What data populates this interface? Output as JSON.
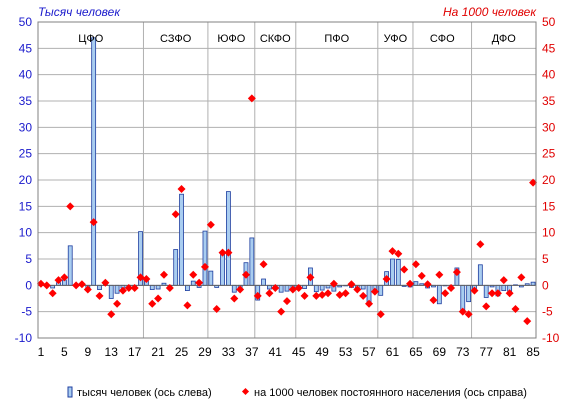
{
  "chart_data": {
    "type": "bar+scatter",
    "left_axis_unit": "Тысяч человек",
    "right_axis_unit": "На 1000 человек",
    "left_axis": {
      "range": [
        -10,
        50
      ],
      "ticks": [
        "50",
        "45",
        "40",
        "35",
        "30",
        "25",
        "20",
        "15",
        "10",
        "5",
        "0",
        "-5",
        "-10"
      ]
    },
    "right_axis": {
      "range": [
        -10,
        50
      ],
      "ticks": [
        "50",
        "45",
        "40",
        "35",
        "30",
        "25",
        "20",
        "15",
        "10",
        "5",
        "0",
        "-5",
        "-10"
      ]
    },
    "x_ticks": [
      "1",
      "5",
      "9",
      "13",
      "17",
      "21",
      "25",
      "29",
      "33",
      "37",
      "41",
      "45",
      "49",
      "53",
      "57",
      "61",
      "65",
      "69",
      "73",
      "77",
      "81",
      "85"
    ],
    "districts": [
      {
        "label": "ЦФО"
      },
      {
        "label": "СЗФО"
      },
      {
        "label": "ЮФО"
      },
      {
        "label": "СКФО"
      },
      {
        "label": "ПФО"
      },
      {
        "label": "УФО"
      },
      {
        "label": "СФО"
      },
      {
        "label": "ДФО"
      }
    ],
    "legend": {
      "bars": "тысяч человек (ось слева)",
      "dots": "на 1000 человек постоянного населения (ось справа)"
    },
    "colors": {
      "bar_fill": "#a9cdf0",
      "bar_stroke": "#1f3fa0",
      "dot": "#ff0000",
      "left_unit": "#1a1acc",
      "right_unit": "#e00000",
      "grid": "#b0b0b0"
    },
    "grid": true,
    "series": [
      {
        "name": "тысяч человек (ось слева)",
        "type": "bar",
        "axis": "left",
        "values": [
          0.2,
          0.1,
          -0.5,
          0.5,
          1,
          7.5,
          -0.2,
          0.3,
          -0.5,
          47,
          -0.8,
          0.3,
          -2.5,
          -1.5,
          -0.5,
          -0.3,
          -0.5,
          10.2,
          1,
          -0.8,
          -0.7,
          0.4,
          -0.6,
          6.8,
          17.3,
          -1,
          0.8,
          -0.4,
          10.3,
          2.7,
          -0.4,
          6.3,
          17.8,
          -1.3,
          -0.6,
          4.3,
          9,
          -2.8,
          1.2,
          -0.7,
          -0.4,
          -1.3,
          -1.1,
          -0.5,
          -0.2,
          -0.6,
          3.3,
          -1.2,
          -0.9,
          -0.5,
          -1.1,
          -0.3,
          -0.1,
          -0.4,
          -0.5,
          -0.7,
          -3.7,
          -0.9,
          -1.9,
          2.6,
          5,
          4.9,
          -0.2,
          -0.3,
          0.7,
          0.3,
          -0.5,
          -0.3,
          -3.5,
          -0.1,
          -0.6,
          3.3,
          -5.1,
          -3.1,
          -1.1,
          3.9,
          -2.3,
          -0.3,
          -2,
          -1,
          -1.1,
          0.1,
          -0.3,
          0.3,
          0.6
        ]
      },
      {
        "name": "на 1000 человек постоянного населения (ось справа)",
        "type": "scatter",
        "axis": "right",
        "values": [
          0.3,
          0,
          -1.5,
          1,
          1.5,
          15,
          0,
          0.2,
          -0.8,
          12,
          -2,
          0.5,
          -5.5,
          -3.5,
          -1,
          -0.5,
          -0.5,
          1.5,
          1.2,
          -3.5,
          -2.5,
          2,
          -0.5,
          13.5,
          18.3,
          -3.8,
          2,
          0.5,
          3.5,
          11.5,
          -4.5,
          6.2,
          6.2,
          -2.5,
          -0.8,
          2,
          35.5,
          -2,
          4,
          -1.5,
          -0.5,
          -5,
          -3,
          -0.8,
          -0.5,
          -2,
          1.5,
          -2,
          -1.8,
          -1.5,
          0.3,
          -1.8,
          -1.5,
          0.2,
          -0.8,
          -2,
          -3.5,
          -1.2,
          -5.5,
          1.2,
          6.5,
          6,
          3,
          0.3,
          4,
          1.8,
          0.2,
          -2.8,
          2,
          -1.5,
          -0.5,
          2.5,
          -5,
          -5.5,
          -1,
          7.8,
          -4,
          -1.5,
          -1.5,
          1,
          -1.5,
          -4.5,
          1.5,
          -6.8,
          19.5
        ]
      }
    ]
  }
}
